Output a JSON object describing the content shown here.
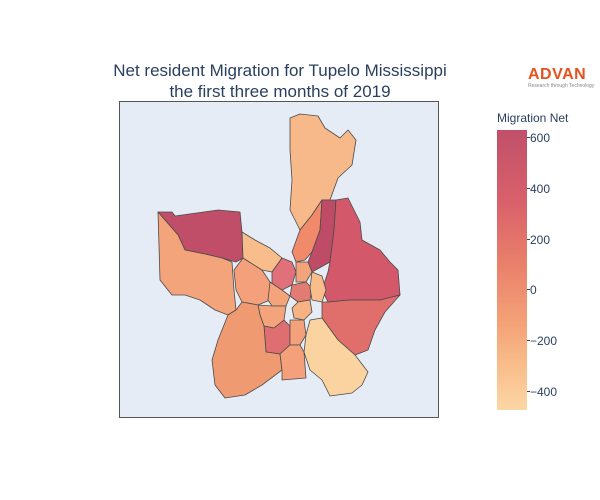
{
  "title": {
    "line1": "Net resident Migration for Tupelo Mississippi",
    "line2": "the first three months of 2019"
  },
  "logo": {
    "word": "ADVAN",
    "tagline": "Research through Technology"
  },
  "colorbar": {
    "title": "Migration Net",
    "ticks": [
      "600",
      "400",
      "200",
      "0",
      "−200",
      "−400"
    ],
    "colors": [
      "#c0506a",
      "#d8606a",
      "#e9806a",
      "#f4a077",
      "#f8bd8a",
      "#fbd7a4"
    ]
  }
}
